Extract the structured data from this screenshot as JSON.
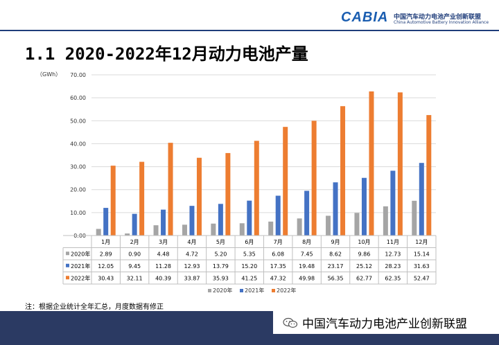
{
  "header": {
    "logo_text": "CABIA",
    "org_name_cn": "中国汽车动力电池产业创新联盟",
    "org_name_en": "China Automotive Battery Innovation Alliance"
  },
  "page_title": "1.1 2020-2022年12月动力电池产量",
  "note": "注：根据企业统计全年汇总，月度数据有修正",
  "footer": {
    "account_name": "中国汽车动力电池产业创新联盟",
    "icon": "wechat-icon"
  },
  "chart_data": {
    "type": "bar",
    "unit_label": "（GWh）",
    "ylim": [
      0,
      70
    ],
    "yticks": [
      "0.00",
      "10.00",
      "20.00",
      "30.00",
      "40.00",
      "50.00",
      "60.00",
      "70.00"
    ],
    "categories": [
      "1月",
      "2月",
      "3月",
      "4月",
      "5月",
      "6月",
      "7月",
      "8月",
      "9月",
      "10月",
      "11月",
      "12月"
    ],
    "series": [
      {
        "name": "2020年",
        "color": "#a5a5a5",
        "values": [
          2.89,
          0.9,
          4.48,
          4.72,
          5.2,
          5.35,
          6.08,
          7.45,
          8.62,
          9.86,
          12.73,
          15.14
        ],
        "labels": [
          "2.89",
          "0.90",
          "4.48",
          "4.72",
          "5.20",
          "5.35",
          "6.08",
          "7.45",
          "8.62",
          "9.86",
          "12.73",
          "15.14"
        ]
      },
      {
        "name": "2021年",
        "color": "#4472c4",
        "values": [
          12.05,
          9.45,
          11.28,
          12.93,
          13.79,
          15.2,
          17.35,
          19.48,
          23.17,
          25.12,
          28.23,
          31.63
        ],
        "labels": [
          "12.05",
          "9.45",
          "11.28",
          "12.93",
          "13.79",
          "15.20",
          "17.35",
          "19.48",
          "23.17",
          "25.12",
          "28.23",
          "31.63"
        ]
      },
      {
        "name": "2022年",
        "color": "#ed7d31",
        "values": [
          30.43,
          32.11,
          40.39,
          33.87,
          35.93,
          41.25,
          47.32,
          49.98,
          56.35,
          62.77,
          62.35,
          52.47
        ],
        "labels": [
          "30.43",
          "32.11",
          "40.39",
          "33.87",
          "35.93",
          "41.25",
          "47.32",
          "49.98",
          "56.35",
          "62.77",
          "62.35",
          "52.47"
        ]
      }
    ]
  }
}
